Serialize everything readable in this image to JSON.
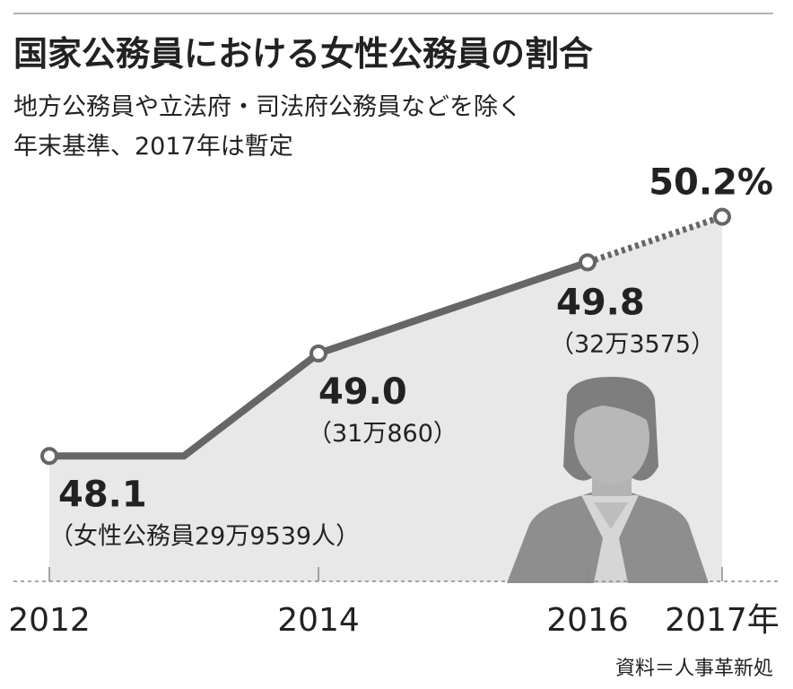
{
  "chart_data": {
    "type": "line",
    "title": "国家公務員における女性公務員の割合",
    "subtitle": [
      "地方公務員や立法府・司法府公務員などを除く",
      "年末基準、2017年は暫定"
    ],
    "x": [
      2012,
      2013,
      2014,
      2015,
      2016,
      2017
    ],
    "xlim": [
      2011.8,
      2017
    ],
    "xticks": [
      2012,
      2014,
      2016,
      {
        "value": 2017,
        "label": "2017年"
      }
    ],
    "ylim": [
      47,
      51
    ],
    "series": [
      {
        "color": "#666666",
        "dash": false,
        "values": [
          48.1,
          48.1,
          49.0,
          49.4,
          49.8,
          null
        ],
        "value_labels": [
          "48.1",
          null,
          "49.0",
          null,
          "49.8",
          null
        ]
      },
      {
        "color": "#666666",
        "dash": true,
        "values": [
          null,
          null,
          null,
          null,
          49.8,
          50.2
        ],
        "value_labels": [
          null,
          null,
          null,
          null,
          null,
          "50.2%"
        ]
      }
    ],
    "annotations": [
      {
        "x": 2012,
        "text": "（女性公務員29万9539人）"
      },
      {
        "x": 2014,
        "text": "（31万860）"
      },
      {
        "x": 2016,
        "text": "（32万3575）"
      }
    ],
    "source": "資料＝人事革新処"
  }
}
